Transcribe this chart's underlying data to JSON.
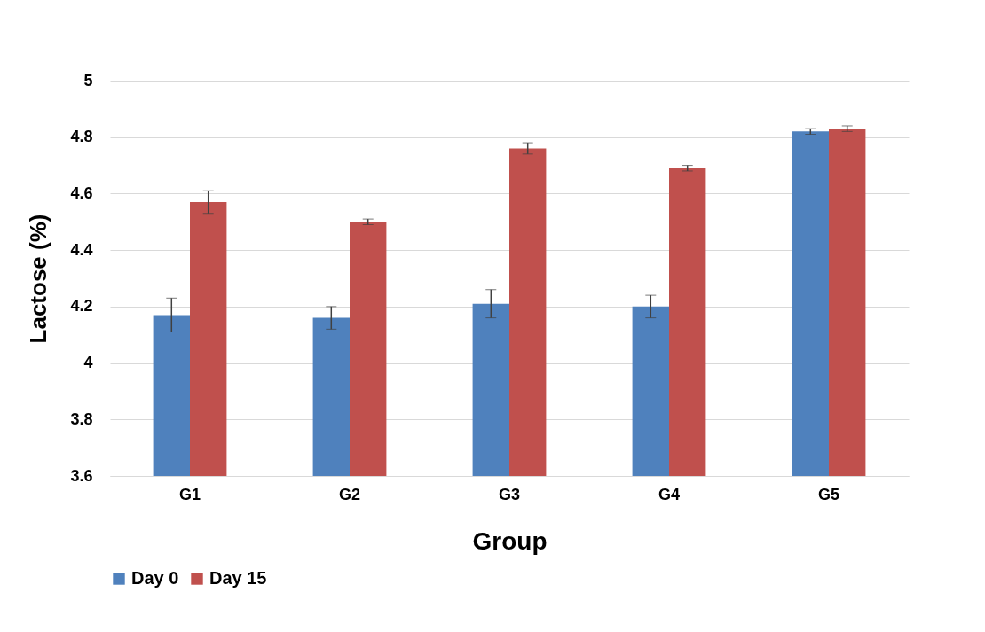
{
  "chart_data": {
    "type": "bar",
    "xlabel": "Group",
    "ylabel": "Lactose (%)",
    "categories": [
      "G1",
      "G2",
      "G3",
      "G4",
      "G5"
    ],
    "series": [
      {
        "name": "Day 0",
        "color": "#4f81bd",
        "values": [
          4.17,
          4.16,
          4.21,
          4.2,
          4.82
        ],
        "errors": [
          0.06,
          0.04,
          0.05,
          0.04,
          0.01
        ]
      },
      {
        "name": "Day 15",
        "color": "#c0504d",
        "values": [
          4.57,
          4.5,
          4.76,
          4.69,
          4.83
        ],
        "errors": [
          0.04,
          0.01,
          0.02,
          0.01,
          0.01
        ]
      }
    ],
    "ylim": [
      3.6,
      5
    ],
    "yticks": [
      3.6,
      3.8,
      4,
      4.2,
      4.4,
      4.6,
      4.8,
      5
    ],
    "grid": "y",
    "legend": "bottom"
  }
}
